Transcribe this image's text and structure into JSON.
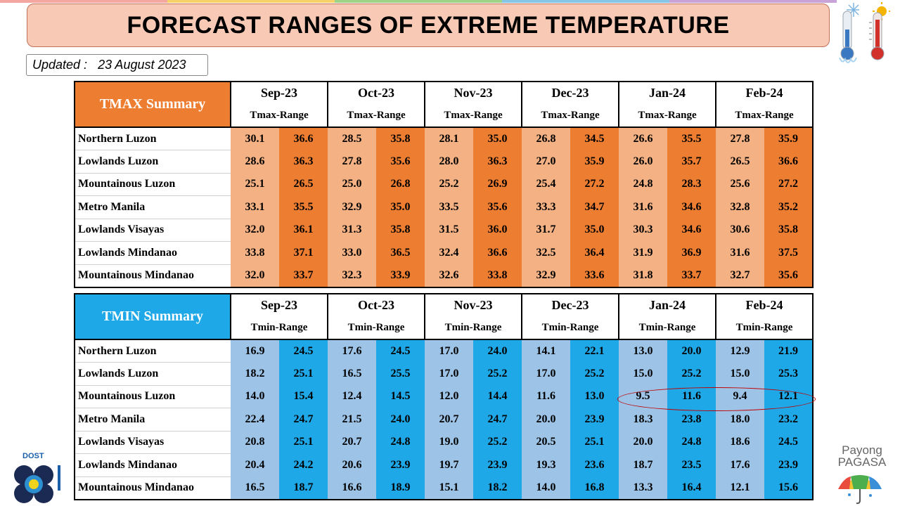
{
  "title": "FORECAST RANGES OF EXTREME TEMPERATURE",
  "updated_label": "Updated :",
  "updated_date": "23 August 2023",
  "months": [
    "Sep-23",
    "Oct-23",
    "Nov-23",
    "Dec-23",
    "Jan-24",
    "Feb-24"
  ],
  "regions": [
    "Northern Luzon",
    "Lowlands Luzon",
    "Mountainous Luzon",
    "Metro Manila",
    "Lowlands Visayas",
    "Lowlands Mindanao",
    "Mountainous Mindanao"
  ],
  "tmax": {
    "summary_label": "TMAX Summary",
    "range_label": "Tmax-Range",
    "rows": [
      [
        "30.1",
        "36.6",
        "28.5",
        "35.8",
        "28.1",
        "35.0",
        "26.8",
        "34.5",
        "26.6",
        "35.5",
        "27.8",
        "35.9"
      ],
      [
        "28.6",
        "36.3",
        "27.8",
        "35.6",
        "28.0",
        "36.3",
        "27.0",
        "35.9",
        "26.0",
        "35.7",
        "26.5",
        "36.6"
      ],
      [
        "25.1",
        "26.5",
        "25.0",
        "26.8",
        "25.2",
        "26.9",
        "25.4",
        "27.2",
        "24.8",
        "28.3",
        "25.6",
        "27.2"
      ],
      [
        "33.1",
        "35.5",
        "32.9",
        "35.0",
        "33.5",
        "35.6",
        "33.3",
        "34.7",
        "31.6",
        "34.6",
        "32.8",
        "35.2"
      ],
      [
        "32.0",
        "36.1",
        "31.3",
        "35.8",
        "31.5",
        "36.0",
        "31.7",
        "35.0",
        "30.3",
        "34.6",
        "30.6",
        "35.8"
      ],
      [
        "33.8",
        "37.1",
        "33.0",
        "36.5",
        "32.4",
        "36.6",
        "32.5",
        "36.4",
        "31.9",
        "36.9",
        "31.6",
        "37.5"
      ],
      [
        "32.0",
        "33.7",
        "32.3",
        "33.9",
        "32.6",
        "33.8",
        "32.9",
        "33.6",
        "31.8",
        "33.7",
        "32.7",
        "35.6"
      ]
    ]
  },
  "tmin": {
    "summary_label": "TMIN Summary",
    "range_label": "Tmin-Range",
    "rows": [
      [
        "16.9",
        "24.5",
        "17.6",
        "24.5",
        "17.0",
        "24.0",
        "14.1",
        "22.1",
        "13.0",
        "20.0",
        "12.9",
        "21.9"
      ],
      [
        "18.2",
        "25.1",
        "16.5",
        "25.5",
        "17.0",
        "25.2",
        "17.0",
        "25.2",
        "15.0",
        "25.2",
        "15.0",
        "25.3"
      ],
      [
        "14.0",
        "15.4",
        "12.4",
        "14.5",
        "12.0",
        "14.4",
        "11.6",
        "13.0",
        "9.5",
        "11.6",
        "9.4",
        "12.1"
      ],
      [
        "22.4",
        "24.7",
        "21.5",
        "24.0",
        "20.7",
        "24.7",
        "20.0",
        "23.9",
        "18.3",
        "23.8",
        "18.0",
        "23.2"
      ],
      [
        "20.8",
        "25.1",
        "20.7",
        "24.8",
        "19.0",
        "25.2",
        "20.5",
        "25.1",
        "20.0",
        "24.8",
        "18.6",
        "24.5"
      ],
      [
        "20.4",
        "24.2",
        "20.6",
        "23.9",
        "19.7",
        "23.9",
        "19.3",
        "23.6",
        "18.7",
        "23.5",
        "17.6",
        "23.9"
      ],
      [
        "16.5",
        "18.7",
        "16.6",
        "18.9",
        "15.1",
        "18.2",
        "14.0",
        "16.8",
        "13.3",
        "16.4",
        "12.1",
        "15.6"
      ]
    ]
  },
  "logos": {
    "dost": "DOST",
    "pagasa_line1": "Payong",
    "pagasa_line2": "PAGASA"
  },
  "colors": {
    "tmax_header": "#ed7d31",
    "tmax_low": "#f4b183",
    "tmax_high": "#ed7d31",
    "tmin_header": "#1fa8e8",
    "tmin_low": "#9dc3e6",
    "tmin_high": "#1fa8e8",
    "title_bg": "#f8c9b5",
    "highlight": "#c00000"
  },
  "icons": [
    "cold-thermometer-icon",
    "hot-thermometer-icon",
    "dost-logo",
    "pagasa-umbrella-icon"
  ]
}
